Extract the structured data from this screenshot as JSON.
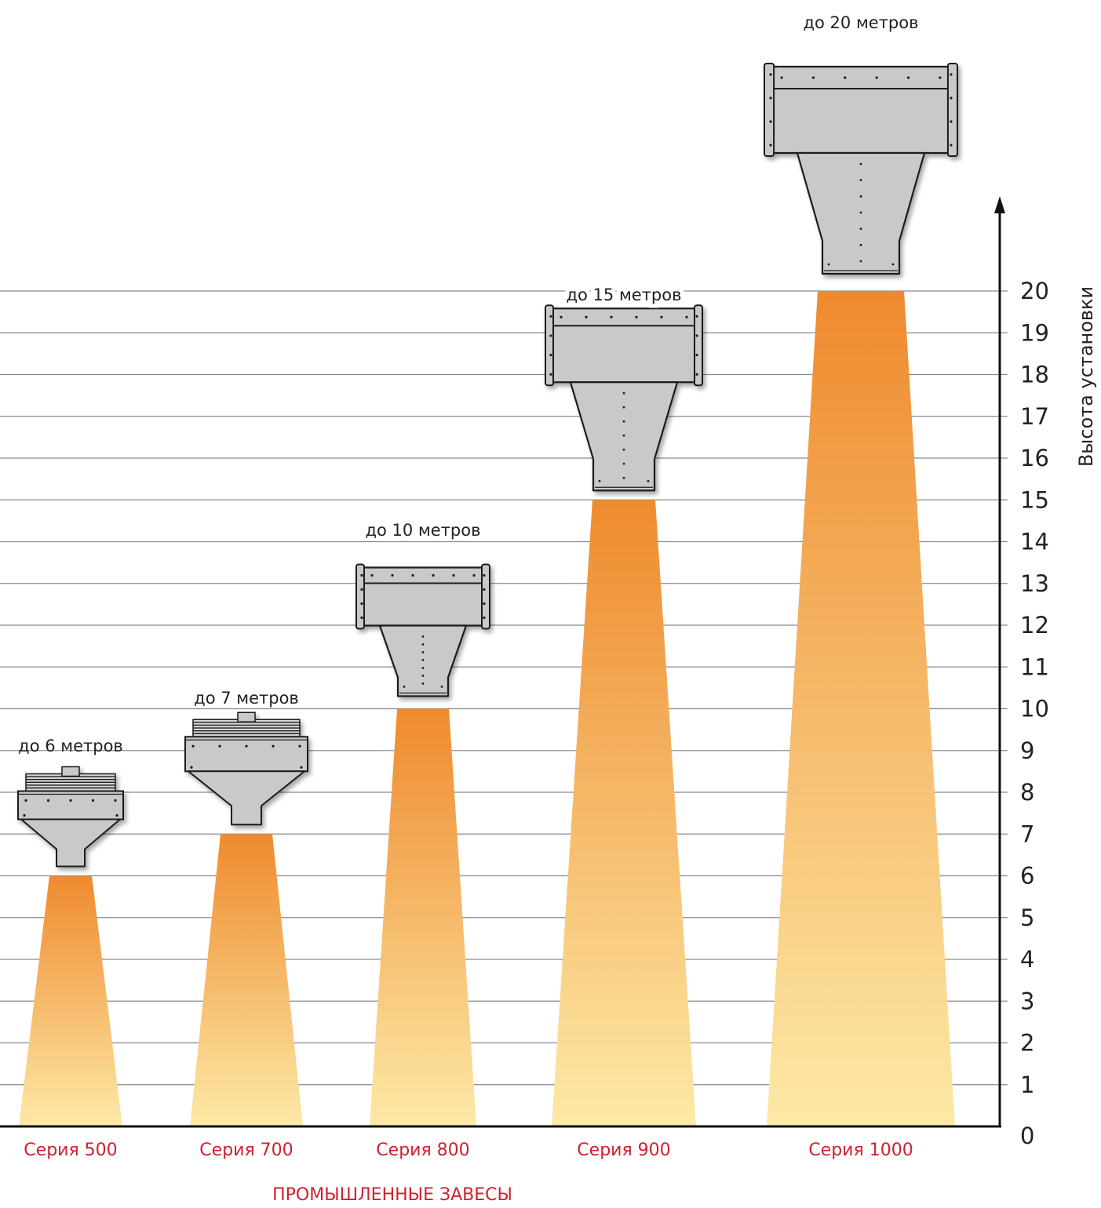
{
  "chart_data": {
    "type": "bar",
    "categories": [
      "Серия 500",
      "Серия 700",
      "Серия 800",
      "Серия 900",
      "Серия 1000"
    ],
    "values": [
      6,
      7,
      10,
      15,
      20
    ],
    "data_labels": [
      "до 6 метров",
      "до 7 метров",
      "до 10 метров",
      "до 15 метров",
      "до 20 метров"
    ],
    "ylabel": "Высота установки",
    "xlabel": "",
    "footer": "ПРОМЫШЛЕННЫЕ ЗАВЕСЫ",
    "ylim": [
      0,
      20
    ],
    "yticks": [
      "0",
      "1",
      "2",
      "3",
      "4",
      "5",
      "6",
      "7",
      "8",
      "9",
      "10",
      "11",
      "12",
      "13",
      "14",
      "15",
      "16",
      "17",
      "18",
      "19",
      "20"
    ],
    "grid": true,
    "axis_side": "right",
    "colors": {
      "beam_top": "#ef8a2e",
      "beam_bottom": "#fde9a6",
      "unit_fill": "#c8c9c8",
      "unit_stroke": "#1c1c1c",
      "grid": "#8a8a8a",
      "axis": "#111111",
      "series_text": "#d0212f"
    }
  }
}
